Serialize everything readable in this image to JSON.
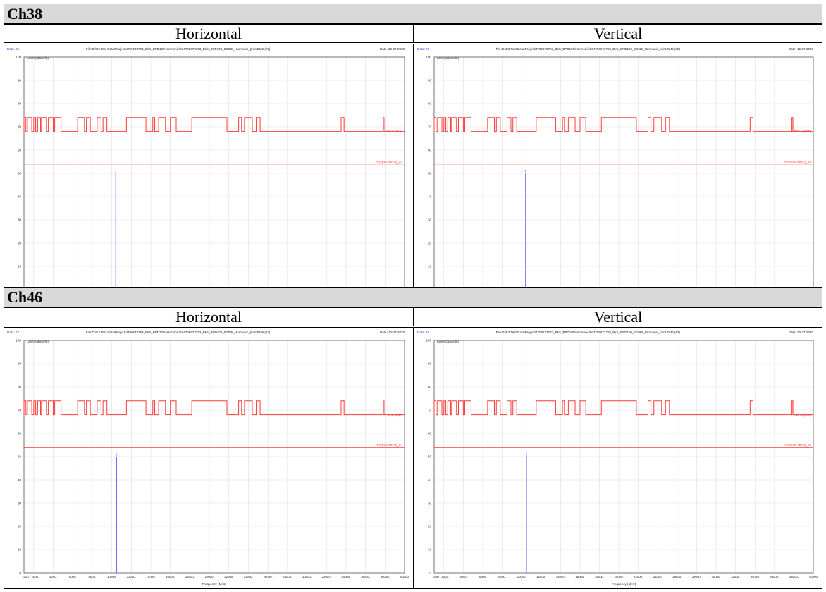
{
  "sections": [
    {
      "title": "Ch38",
      "plots": [
        {
          "polarization": "Horizontal",
          "data_no": "25",
          "marker_x": 10400,
          "marker_y": 50.5
        },
        {
          "polarization": "Vertical",
          "data_no": "26",
          "marker_x": 10400,
          "marker_y": 50.0
        }
      ]
    },
    {
      "title": "Ch46",
      "plots": [
        {
          "polarization": "Horizontal",
          "data_no": "27",
          "marker_x": 10500,
          "marker_y": 49.8
        },
        {
          "polarization": "Vertical",
          "data_no": "28",
          "marker_x": 10500,
          "marker_y": 50.5
        }
      ]
    }
  ],
  "chart_common": {
    "file_text": "File:D:\\E3 Test Data\\Project\\4709673793_BkS_BPD100\\Harmonic\\504709673793_BkS_BPD100_5G0BI_Harmonic_print.EM6 (#2)",
    "date_text": "Date: 10-27-2020",
    "ylabel": "Level (dBuV/m)",
    "xlabel": "Frequency (MHz)",
    "data_prefix": "Data: "
  },
  "chart_data": {
    "type": "line",
    "xlim": [
      1000,
      40000
    ],
    "ylim": [
      0,
      100
    ],
    "y_ticks": [
      "0",
      "10",
      "20",
      "30",
      "40",
      "50",
      "60",
      "70",
      "80",
      "90",
      "100"
    ],
    "x_tick_labels": [
      "1000",
      "2000.",
      "4000.",
      "6000.",
      "8000.",
      "10000.",
      "12000.",
      "14000.",
      "16000.",
      "18000.",
      "20000.",
      "22000.",
      "24000.",
      "26000.",
      "28000.",
      "30000.",
      "32000.",
      "34000.",
      "36000.",
      "38000.",
      "40000"
    ],
    "limit_lines": [
      {
        "name": "PEAK (EMI)",
        "color": "#ff3b3b",
        "base": 68,
        "high": 74,
        "high_intervals": [
          [
            1000,
            1200
          ],
          [
            1350,
            1800
          ],
          [
            2000,
            2200
          ],
          [
            2400,
            2700
          ],
          [
            2800,
            3300
          ],
          [
            3500,
            4000
          ],
          [
            4150,
            4800
          ],
          [
            6500,
            7200
          ],
          [
            7400,
            7800
          ],
          [
            8500,
            8900
          ],
          [
            9100,
            9500
          ],
          [
            11500,
            13500
          ],
          [
            14200,
            14400
          ],
          [
            14800,
            15500
          ],
          [
            16000,
            16600
          ],
          [
            18200,
            21800
          ],
          [
            23000,
            23300
          ],
          [
            23600,
            24400
          ],
          [
            24800,
            25200
          ],
          [
            33500,
            33800
          ],
          [
            37800,
            37900
          ]
        ]
      },
      {
        "name": "AVG(NG-MRG)_54",
        "color": "#ff3b3b",
        "value": 54
      }
    ],
    "marker_label": "1",
    "marker_color": "#6b6bf0"
  }
}
